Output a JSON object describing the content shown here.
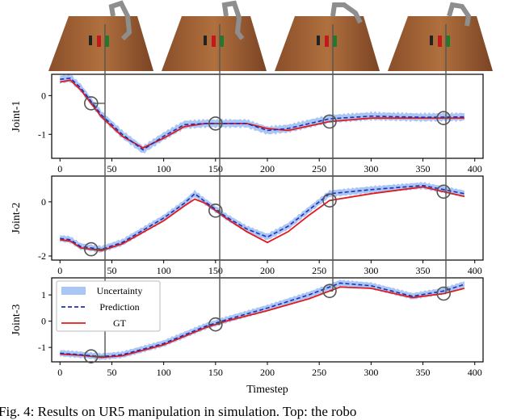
{
  "caption": "Fig. 4: Results on UR5 manipulation in simulation. Top: the robo",
  "chart_data": {
    "type": "line",
    "xlabel": "Timestep",
    "x_ticks": [
      0,
      50,
      100,
      150,
      200,
      250,
      300,
      350,
      400
    ],
    "xlim": [
      -8,
      408
    ],
    "legend": {
      "placement": "top-left",
      "in_panel": "Joint-3",
      "entries": [
        {
          "label": "Uncertainty",
          "style": "band",
          "color": "#a9c6f4"
        },
        {
          "label": "Prediction",
          "style": "dashed",
          "color": "#1f2fb8"
        },
        {
          "label": "GT",
          "style": "solid",
          "color": "#e31a1c"
        }
      ]
    },
    "snapshot_timesteps": [
      30,
      150,
      260,
      370
    ],
    "panels": [
      {
        "ylabel": "Joint-1",
        "ylim": [
          -1.62,
          0.55
        ],
        "y_ticks": [
          0,
          -1
        ],
        "gt": [
          [
            0,
            0.35
          ],
          [
            10,
            0.4
          ],
          [
            20,
            0.15
          ],
          [
            40,
            -0.55
          ],
          [
            60,
            -1.05
          ],
          [
            80,
            -1.35
          ],
          [
            100,
            -1.1
          ],
          [
            120,
            -0.8
          ],
          [
            140,
            -0.72
          ],
          [
            180,
            -0.72
          ],
          [
            200,
            -0.85
          ],
          [
            220,
            -0.9
          ],
          [
            260,
            -0.67
          ],
          [
            300,
            -0.58
          ],
          [
            350,
            -0.58
          ],
          [
            390,
            -0.58
          ]
        ],
        "pred": [
          [
            0,
            0.42
          ],
          [
            10,
            0.45
          ],
          [
            20,
            0.2
          ],
          [
            40,
            -0.5
          ],
          [
            60,
            -1.0
          ],
          [
            80,
            -1.4
          ],
          [
            100,
            -1.05
          ],
          [
            120,
            -0.75
          ],
          [
            140,
            -0.72
          ],
          [
            180,
            -0.72
          ],
          [
            200,
            -0.9
          ],
          [
            220,
            -0.85
          ],
          [
            260,
            -0.6
          ],
          [
            300,
            -0.53
          ],
          [
            350,
            -0.56
          ],
          [
            390,
            -0.55
          ]
        ],
        "band": 0.1
      },
      {
        "ylabel": "Joint-2",
        "ylim": [
          -2.15,
          0.95
        ],
        "y_ticks": [
          0,
          -2
        ],
        "gt": [
          [
            0,
            -1.4
          ],
          [
            10,
            -1.45
          ],
          [
            20,
            -1.7
          ],
          [
            40,
            -1.8
          ],
          [
            60,
            -1.55
          ],
          [
            100,
            -0.7
          ],
          [
            120,
            -0.15
          ],
          [
            130,
            0.1
          ],
          [
            140,
            -0.05
          ],
          [
            160,
            -0.6
          ],
          [
            180,
            -1.1
          ],
          [
            200,
            -1.5
          ],
          [
            220,
            -1.1
          ],
          [
            240,
            -0.5
          ],
          [
            260,
            0.05
          ],
          [
            300,
            0.3
          ],
          [
            350,
            0.55
          ],
          [
            390,
            0.2
          ]
        ],
        "pred": [
          [
            0,
            -1.35
          ],
          [
            10,
            -1.4
          ],
          [
            20,
            -1.65
          ],
          [
            40,
            -1.75
          ],
          [
            60,
            -1.5
          ],
          [
            100,
            -0.6
          ],
          [
            120,
            -0.05
          ],
          [
            130,
            0.3
          ],
          [
            140,
            0.0
          ],
          [
            160,
            -0.55
          ],
          [
            180,
            -1.0
          ],
          [
            200,
            -1.3
          ],
          [
            220,
            -0.9
          ],
          [
            240,
            -0.3
          ],
          [
            260,
            0.3
          ],
          [
            300,
            0.45
          ],
          [
            350,
            0.6
          ],
          [
            390,
            0.3
          ]
        ],
        "band": 0.12
      },
      {
        "ylabel": "Joint-3",
        "ylim": [
          -1.55,
          1.65
        ],
        "y_ticks": [
          1,
          0,
          -1
        ],
        "gt": [
          [
            0,
            -1.25
          ],
          [
            20,
            -1.3
          ],
          [
            40,
            -1.38
          ],
          [
            60,
            -1.32
          ],
          [
            100,
            -0.9
          ],
          [
            140,
            -0.25
          ],
          [
            160,
            0.0
          ],
          [
            200,
            0.4
          ],
          [
            240,
            0.85
          ],
          [
            270,
            1.3
          ],
          [
            300,
            1.25
          ],
          [
            340,
            0.9
          ],
          [
            370,
            1.05
          ],
          [
            390,
            1.25
          ]
        ],
        "pred": [
          [
            0,
            -1.22
          ],
          [
            20,
            -1.28
          ],
          [
            40,
            -1.35
          ],
          [
            60,
            -1.28
          ],
          [
            100,
            -0.85
          ],
          [
            140,
            -0.2
          ],
          [
            160,
            0.05
          ],
          [
            200,
            0.5
          ],
          [
            240,
            1.0
          ],
          [
            270,
            1.45
          ],
          [
            300,
            1.35
          ],
          [
            340,
            0.95
          ],
          [
            370,
            1.15
          ],
          [
            390,
            1.4
          ]
        ],
        "band": 0.12
      }
    ]
  }
}
